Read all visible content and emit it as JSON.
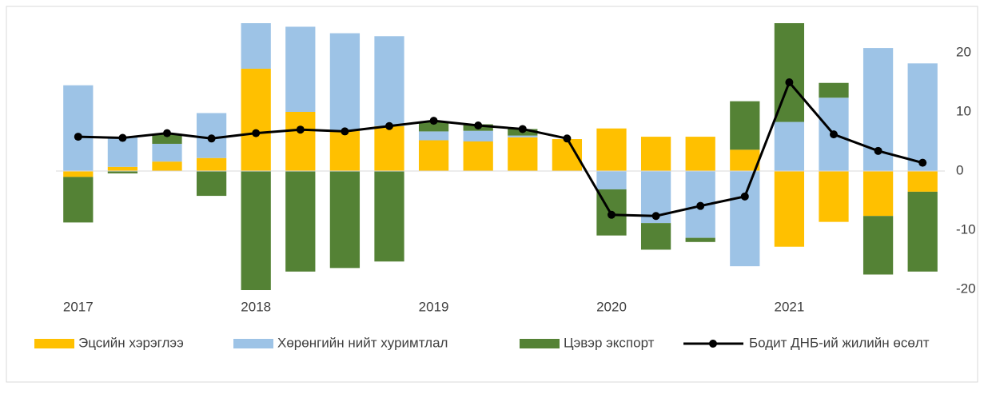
{
  "chart_data": {
    "type": "bar",
    "stacked": true,
    "categories": [
      "2017",
      null,
      null,
      null,
      "2018",
      null,
      null,
      null,
      "2019",
      null,
      null,
      null,
      "2020",
      null,
      null,
      null,
      "2021",
      null,
      null,
      null
    ],
    "series": [
      {
        "name": "Эцсийн хэрэглээ",
        "color": "#ffc000",
        "type": "bar",
        "values": [
          -1,
          0.7,
          1.6,
          2.2,
          17.3,
          10,
          6.8,
          7.6,
          5.2,
          5,
          5.7,
          5.4,
          7.2,
          5.8,
          5.8,
          3.6,
          -12.8,
          -8.6,
          -7.6,
          -3.5
        ]
      },
      {
        "name": "Хөрөнгийн нийт хуримтлал",
        "color": "#9dc3e6",
        "type": "bar",
        "values": [
          14.5,
          5,
          3,
          7.6,
          9,
          14.4,
          16.5,
          15.2,
          1.5,
          1.8,
          0.3,
          0,
          -3.1,
          -8.8,
          -11.3,
          -16.1,
          8.3,
          12.4,
          20.8,
          18.2
        ]
      },
      {
        "name": "Цэвэр экспорт",
        "color": "#548235",
        "type": "bar",
        "values": [
          -7.7,
          -0.4,
          1.7,
          -4.2,
          -20.3,
          -17,
          -16.4,
          -15.3,
          1.6,
          1.1,
          1.1,
          0,
          -7.8,
          -4.5,
          -0.7,
          8.2,
          17,
          2.5,
          -9.9,
          -13.5
        ]
      },
      {
        "name": "Бодит ДНБ-ий жилийн өсөлт",
        "color": "#000000",
        "type": "line",
        "values": [
          5.8,
          5.6,
          6.4,
          5.5,
          6.4,
          7,
          6.7,
          7.6,
          8.5,
          7.7,
          7.1,
          5.5,
          -7.4,
          -7.6,
          -5.9,
          -4.3,
          15,
          6.2,
          3.4,
          1.4
        ]
      }
    ],
    "ylim": [
      -20,
      25
    ],
    "yticks": [
      -20,
      -10,
      0,
      10,
      20
    ],
    "y_axis_side": "right",
    "legend": "bottom"
  }
}
